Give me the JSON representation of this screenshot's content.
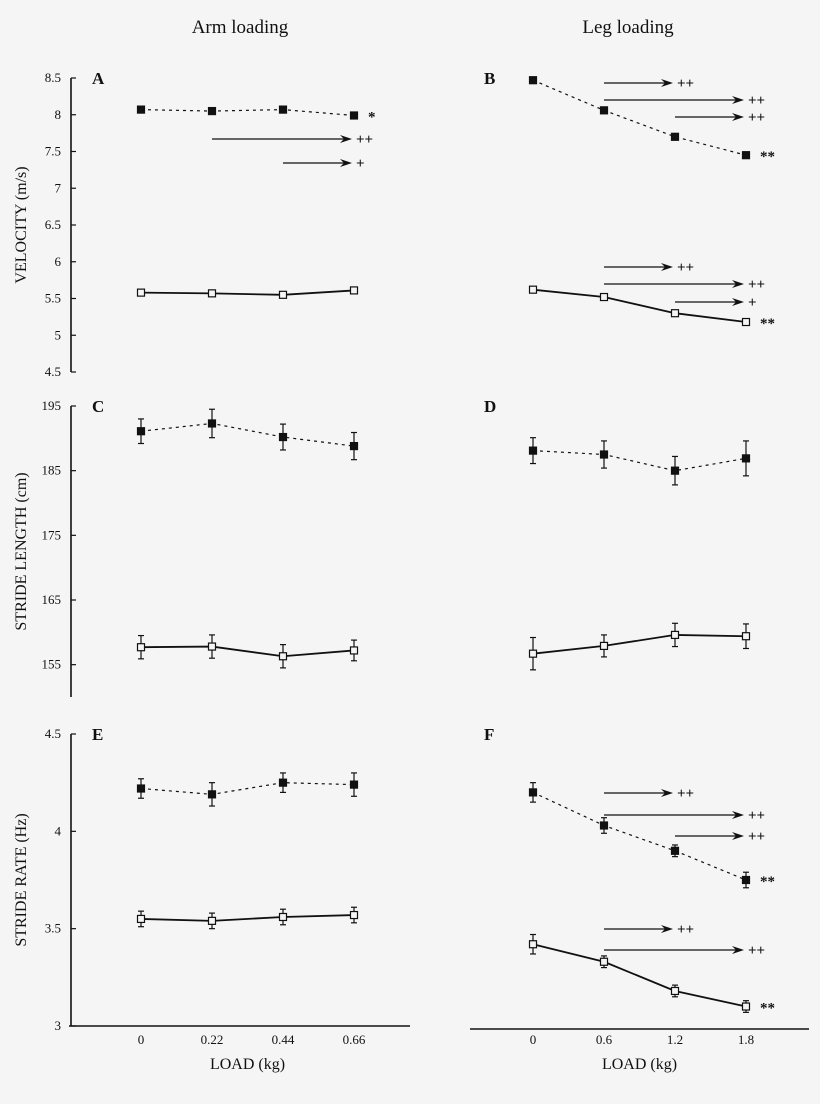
{
  "column_titles": [
    "Arm loading",
    "Leg loading"
  ],
  "colors": {
    "ink": "#111111",
    "background": "#f5f5f5"
  },
  "chart_data": [
    {
      "panel": "A",
      "type": "line",
      "column": "Arm loading",
      "ylabel": "VELOCITY (m/s)",
      "ylim": [
        4.5,
        8.5
      ],
      "yticks": [
        "8.5",
        "8",
        "7.5",
        "7",
        "6.5",
        "6",
        "5.5",
        "5",
        "4.5"
      ],
      "x": [
        0,
        0.22,
        0.44,
        0.66
      ],
      "series": [
        {
          "style": "filled-dashed",
          "values": [
            8.07,
            8.05,
            8.07,
            7.99
          ],
          "errors": [
            0.02,
            0.02,
            0.02,
            0.03
          ],
          "significance": "*"
        },
        {
          "style": "open-solid",
          "values": [
            5.58,
            5.57,
            5.55,
            5.61
          ],
          "errors": [
            0.01,
            0.01,
            0.01,
            0.01
          ],
          "significance": ""
        }
      ],
      "comparisons": [
        {
          "series": 0,
          "from": 0.22,
          "to": 0.66,
          "label": "++"
        },
        {
          "series": 0,
          "from": 0.44,
          "to": 0.66,
          "label": "+"
        }
      ]
    },
    {
      "panel": "B",
      "type": "line",
      "column": "Leg loading",
      "ylabel": "",
      "ylim": [
        4.5,
        8.5
      ],
      "x": [
        0,
        0.6,
        1.2,
        1.8
      ],
      "series": [
        {
          "style": "filled-dashed",
          "values": [
            8.47,
            8.06,
            7.7,
            7.45
          ],
          "errors": [
            0.02,
            0.02,
            0.02,
            0.02
          ],
          "significance": "**"
        },
        {
          "style": "open-solid",
          "values": [
            5.62,
            5.52,
            5.3,
            5.18
          ],
          "errors": [
            0.01,
            0.01,
            0.01,
            0.01
          ],
          "significance": "**"
        }
      ],
      "comparisons": [
        {
          "series": 0,
          "from": 0.6,
          "to": 1.2,
          "label": "++"
        },
        {
          "series": 0,
          "from": 0.6,
          "to": 1.8,
          "label": "++"
        },
        {
          "series": 0,
          "from": 1.2,
          "to": 1.8,
          "label": "++"
        },
        {
          "series": 1,
          "from": 0.6,
          "to": 1.2,
          "label": "++"
        },
        {
          "series": 1,
          "from": 0.6,
          "to": 1.8,
          "label": "++"
        },
        {
          "series": 1,
          "from": 1.2,
          "to": 1.8,
          "label": "+"
        }
      ]
    },
    {
      "panel": "C",
      "type": "line",
      "column": "Arm loading",
      "ylabel": "STRIDE LENGTH (cm)",
      "ylim": [
        150,
        195
      ],
      "yticks": [
        "195",
        "185",
        "175",
        "165",
        "155"
      ],
      "x": [
        0,
        0.22,
        0.44,
        0.66
      ],
      "series": [
        {
          "style": "filled-dashed",
          "values": [
            191.1,
            192.3,
            190.2,
            188.8
          ],
          "errors": [
            1.9,
            2.2,
            2.0,
            2.1
          ],
          "significance": ""
        },
        {
          "style": "open-solid",
          "values": [
            157.7,
            157.8,
            156.3,
            157.2
          ],
          "errors": [
            1.8,
            1.8,
            1.8,
            1.6
          ],
          "significance": ""
        }
      ],
      "comparisons": []
    },
    {
      "panel": "D",
      "type": "line",
      "column": "Leg loading",
      "ylabel": "",
      "ylim": [
        150,
        195
      ],
      "x": [
        0,
        0.6,
        1.2,
        1.8
      ],
      "series": [
        {
          "style": "filled-dashed",
          "values": [
            188.1,
            187.5,
            185.0,
            186.9
          ],
          "errors": [
            2.0,
            2.1,
            2.2,
            2.7
          ],
          "significance": ""
        },
        {
          "style": "open-solid",
          "values": [
            156.7,
            157.9,
            159.6,
            159.4
          ],
          "errors": [
            2.5,
            1.7,
            1.8,
            1.9
          ],
          "significance": ""
        }
      ],
      "comparisons": []
    },
    {
      "panel": "E",
      "type": "line",
      "column": "Arm loading",
      "ylabel": "STRIDE RATE (Hz)",
      "xlabel": "LOAD (kg)",
      "ylim": [
        3,
        4.5
      ],
      "yticks": [
        "4.5",
        "4",
        "3.5",
        "3"
      ],
      "xticks": [
        "0",
        "0.22",
        "0.44",
        "0.66"
      ],
      "x": [
        0,
        0.22,
        0.44,
        0.66
      ],
      "series": [
        {
          "style": "filled-dashed",
          "values": [
            4.22,
            4.19,
            4.25,
            4.24
          ],
          "errors": [
            0.05,
            0.06,
            0.05,
            0.06
          ],
          "significance": ""
        },
        {
          "style": "open-solid",
          "values": [
            3.55,
            3.54,
            3.56,
            3.57
          ],
          "errors": [
            0.04,
            0.04,
            0.04,
            0.04
          ],
          "significance": ""
        }
      ],
      "comparisons": []
    },
    {
      "panel": "F",
      "type": "line",
      "column": "Leg loading",
      "ylabel": "",
      "xlabel": "LOAD (kg)",
      "ylim": [
        3,
        4.5
      ],
      "xticks": [
        "0",
        "0.6",
        "1.2",
        "1.8"
      ],
      "x": [
        0,
        0.6,
        1.2,
        1.8
      ],
      "series": [
        {
          "style": "filled-dashed",
          "values": [
            4.2,
            4.03,
            3.9,
            3.75
          ],
          "errors": [
            0.05,
            0.04,
            0.03,
            0.04
          ],
          "significance": "**"
        },
        {
          "style": "open-solid",
          "values": [
            3.42,
            3.33,
            3.18,
            3.1
          ],
          "errors": [
            0.05,
            0.03,
            0.03,
            0.03
          ],
          "significance": "**"
        }
      ],
      "comparisons": [
        {
          "series": 0,
          "from": 0.6,
          "to": 1.2,
          "label": "++"
        },
        {
          "series": 0,
          "from": 0.6,
          "to": 1.8,
          "label": "++"
        },
        {
          "series": 0,
          "from": 1.2,
          "to": 1.8,
          "label": "++"
        },
        {
          "series": 1,
          "from": 0.6,
          "to": 1.2,
          "label": "++"
        },
        {
          "series": 1,
          "from": 0.6,
          "to": 1.8,
          "label": "++"
        }
      ]
    }
  ]
}
